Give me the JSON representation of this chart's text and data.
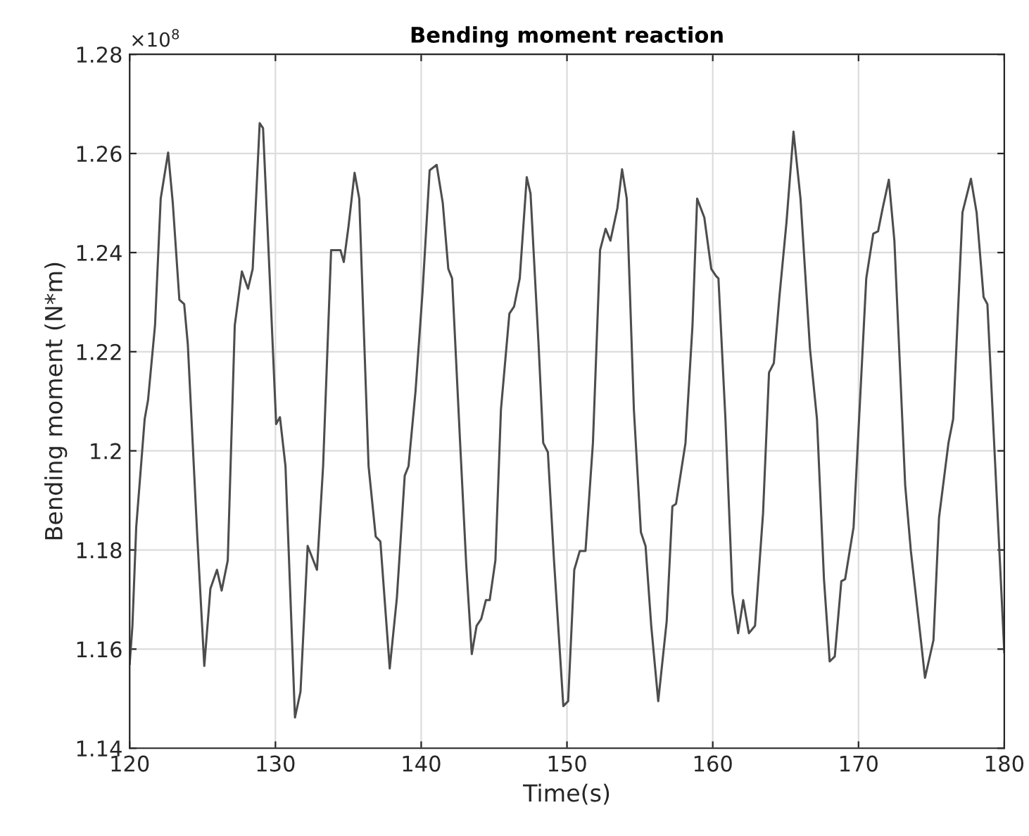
{
  "chart_data": {
    "type": "line",
    "title": "Bending moment reaction",
    "xlabel": "Time(s)",
    "ylabel": "Bending moment (N*m)",
    "annotations": [
      "×10$^{8}$"
    ],
    "xlim": [
      120,
      180
    ],
    "xticks": [
      120,
      130,
      140,
      150,
      160,
      170,
      180
    ],
    "ylim": [
      1.14,
      1.28
    ],
    "yticks": [
      1.14,
      1.16,
      1.18,
      1.2,
      1.22,
      1.24,
      1.26,
      1.28
    ],
    "grid": true,
    "marker": "none",
    "line_style": "solid",
    "series": [
      {
        "color": "#4d4d4d",
        "x": [
          120.0,
          120.19,
          120.45,
          121.03,
          121.26,
          121.74,
          122.13,
          122.64,
          122.96,
          123.41,
          123.74,
          123.99,
          124.64,
          125.12,
          125.54,
          125.99,
          126.31,
          126.73,
          127.21,
          127.7,
          128.12,
          128.44,
          128.92,
          129.15,
          129.47,
          130.05,
          130.31,
          130.69,
          131.34,
          131.72,
          132.21,
          132.53,
          132.85,
          133.27,
          133.82,
          134.46,
          134.69,
          135.01,
          135.43,
          135.75,
          136.39,
          136.88,
          137.2,
          137.84,
          138.33,
          138.87,
          139.13,
          139.61,
          140.09,
          140.58,
          141.06,
          141.48,
          141.86,
          142.12,
          142.67,
          143.09,
          143.47,
          143.8,
          144.12,
          144.44,
          144.7,
          145.09,
          145.47,
          146.05,
          146.37,
          146.76,
          147.24,
          147.5,
          148.05,
          148.37,
          148.69,
          149.11,
          149.75,
          150.08,
          150.5,
          150.88,
          151.27,
          151.78,
          152.27,
          152.65,
          152.98,
          153.46,
          153.78,
          154.1,
          154.59,
          155.07,
          155.39,
          155.78,
          156.26,
          156.84,
          157.23,
          157.48,
          158.13,
          158.61,
          158.93,
          159.42,
          159.9,
          160.22,
          160.39,
          160.87,
          161.35,
          161.74,
          162.09,
          162.48,
          162.9,
          163.45,
          163.86,
          164.19,
          164.57,
          165.06,
          165.54,
          166.02,
          166.67,
          167.15,
          167.63,
          168.02,
          168.37,
          168.82,
          169.08,
          169.66,
          170.53,
          171.01,
          171.34,
          171.66,
          172.08,
          172.46,
          173.2,
          173.59,
          174.24,
          174.56,
          175.14,
          175.52,
          176.17,
          176.49,
          177.13,
          177.71,
          178.1,
          178.58,
          178.84,
          180.0
        ],
        "values": [
          1.157,
          1.1647,
          1.1846,
          1.2064,
          1.2102,
          1.2253,
          1.2509,
          1.2602,
          1.25,
          1.2305,
          1.2296,
          1.2215,
          1.1827,
          1.1566,
          1.1722,
          1.176,
          1.1718,
          1.1779,
          1.2253,
          1.2362,
          1.2327,
          1.2367,
          1.2661,
          1.2651,
          1.2443,
          1.2054,
          1.2068,
          1.1969,
          1.1462,
          1.1514,
          1.1808,
          1.1784,
          1.176,
          1.1969,
          1.2405,
          1.2405,
          1.2381,
          1.2452,
          1.2561,
          1.2509,
          1.1969,
          1.1827,
          1.1817,
          1.1561,
          1.1703,
          1.195,
          1.1969,
          1.212,
          1.232,
          1.2566,
          1.2577,
          1.25,
          1.2367,
          1.2348,
          1.2016,
          1.177,
          1.159,
          1.1647,
          1.1661,
          1.1699,
          1.1699,
          1.1779,
          1.2083,
          1.2277,
          1.2291,
          1.2348,
          1.2552,
          1.2519,
          1.2215,
          1.2016,
          1.1997,
          1.1779,
          1.1485,
          1.1495,
          1.176,
          1.1798,
          1.1798,
          1.2016,
          1.2405,
          1.2448,
          1.2424,
          1.249,
          1.2568,
          1.2509,
          1.2083,
          1.1836,
          1.1808,
          1.1647,
          1.1495,
          1.1656,
          1.1888,
          1.1893,
          1.2016,
          1.2253,
          1.2509,
          1.2471,
          1.2367,
          1.2353,
          1.2348,
          1.2064,
          1.1713,
          1.1632,
          1.1699,
          1.1632,
          1.1647,
          1.1874,
          1.2158,
          1.2177,
          1.231,
          1.2462,
          1.2644,
          1.2509,
          1.2206,
          1.2064,
          1.1741,
          1.1575,
          1.1585,
          1.1737,
          1.1741,
          1.1846,
          1.2348,
          1.2438,
          1.2443,
          1.249,
          1.2547,
          1.2424,
          1.1931,
          1.1798,
          1.1628,
          1.1542,
          1.1618,
          1.1865,
          1.2016,
          1.2064,
          1.2481,
          1.2549,
          1.2481,
          1.231,
          1.2296,
          1.1594
        ]
      }
    ]
  }
}
